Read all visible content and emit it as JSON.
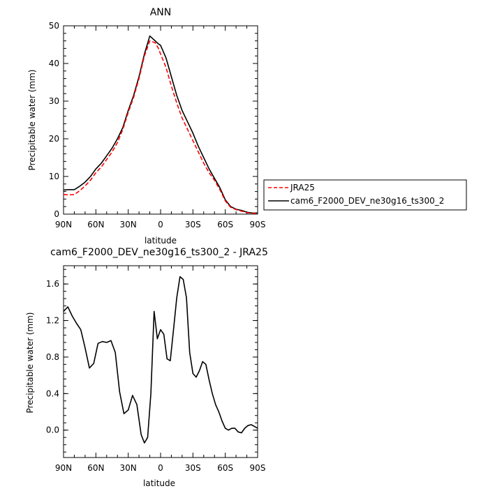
{
  "chart_data": [
    {
      "type": "line",
      "title": "ANN",
      "xlabel": "latitude",
      "ylabel": "Precipitable water (mm)",
      "x_tick_labels": [
        "90N",
        "60N",
        "30N",
        "0",
        "30S",
        "60S",
        "90S"
      ],
      "x_tick_values": [
        90,
        60,
        30,
        0,
        -30,
        -60,
        -90
      ],
      "xlim": [
        90,
        -90
      ],
      "y_ticks": [
        0,
        10,
        20,
        30,
        40,
        50
      ],
      "ylim": [
        0,
        50
      ],
      "legend": {
        "placement": "outside-right"
      },
      "x": [
        90,
        85,
        80,
        75,
        70,
        65,
        60,
        55,
        50,
        45,
        40,
        35,
        30,
        25,
        20,
        15,
        10,
        5,
        2,
        0,
        -5,
        -10,
        -15,
        -20,
        -25,
        -30,
        -35,
        -40,
        -45,
        -50,
        -55,
        -60,
        -65,
        -70,
        -75,
        -80,
        -85,
        -90
      ],
      "series": [
        {
          "name": "JRA25",
          "color": "#ff0000",
          "dash": "dashed",
          "values": [
            5.2,
            5.1,
            5.2,
            6.2,
            7.5,
            9.0,
            11.0,
            12.5,
            14.5,
            16.5,
            19.0,
            22.5,
            27.0,
            31.0,
            36.0,
            42.0,
            46.0,
            45.5,
            44.0,
            42.5,
            39.0,
            34.0,
            29.5,
            25.5,
            22.5,
            19.5,
            16.5,
            13.5,
            11.0,
            9.0,
            6.5,
            3.5,
            1.8,
            1.2,
            0.8,
            0.4,
            0.2,
            0.2
          ]
        },
        {
          "name": "cam6_F2000_DEV_ne30g16_ts300_2",
          "color": "#000000",
          "dash": "solid",
          "values": [
            6.4,
            6.5,
            6.5,
            7.4,
            8.5,
            10.0,
            12.0,
            13.5,
            15.5,
            17.5,
            20.0,
            23.0,
            27.5,
            31.5,
            36.5,
            42.5,
            47.3,
            46.0,
            45.2,
            44.8,
            41.5,
            36.5,
            31.5,
            27.5,
            24.5,
            21.5,
            18.0,
            15.0,
            12.0,
            9.5,
            7.0,
            3.8,
            2.0,
            1.3,
            1.0,
            0.5,
            0.3,
            0.3
          ]
        }
      ]
    },
    {
      "type": "line",
      "title": "cam6_F2000_DEV_ne30g16_ts300_2 - JRA25",
      "xlabel": "latitude",
      "ylabel": "Precipitable water (mm)",
      "x_tick_labels": [
        "90N",
        "60N",
        "30N",
        "0",
        "30S",
        "60S",
        "90S"
      ],
      "x_tick_values": [
        90,
        60,
        30,
        0,
        -30,
        -60,
        -90
      ],
      "xlim": [
        90,
        -90
      ],
      "y_tick_labels": [
        "0.0",
        "0.4",
        "0.8",
        "1.2",
        "1.6"
      ],
      "y_ticks": [
        0.0,
        0.4,
        0.8,
        1.2,
        1.6
      ],
      "ylim": [
        -0.3,
        1.8
      ],
      "x": [
        90,
        86,
        82,
        78,
        74,
        70,
        66,
        62,
        58,
        54,
        50,
        46,
        42,
        38,
        34,
        30,
        26,
        22,
        18,
        15,
        12,
        9,
        6,
        3,
        0,
        -3,
        -6,
        -9,
        -12,
        -15,
        -18,
        -21,
        -24,
        -27,
        -30,
        -33,
        -36,
        -39,
        -42,
        -45,
        -48,
        -51,
        -54,
        -57,
        -60,
        -63,
        -66,
        -69,
        -72,
        -75,
        -78,
        -81,
        -84,
        -87,
        -90
      ],
      "series": [
        {
          "name": "",
          "color": "#000000",
          "dash": "solid",
          "values": [
            1.3,
            1.35,
            1.25,
            1.17,
            1.1,
            0.9,
            0.68,
            0.73,
            0.95,
            0.97,
            0.96,
            0.98,
            0.85,
            0.42,
            0.18,
            0.22,
            0.38,
            0.28,
            -0.05,
            -0.14,
            -0.08,
            0.4,
            1.3,
            1.0,
            1.1,
            1.05,
            0.78,
            0.76,
            1.1,
            1.45,
            1.68,
            1.65,
            1.45,
            0.85,
            0.62,
            0.58,
            0.65,
            0.75,
            0.72,
            0.55,
            0.4,
            0.28,
            0.2,
            0.1,
            0.02,
            0.0,
            0.02,
            0.02,
            -0.02,
            -0.03,
            0.02,
            0.05,
            0.06,
            0.04,
            0.02
          ]
        }
      ]
    }
  ]
}
